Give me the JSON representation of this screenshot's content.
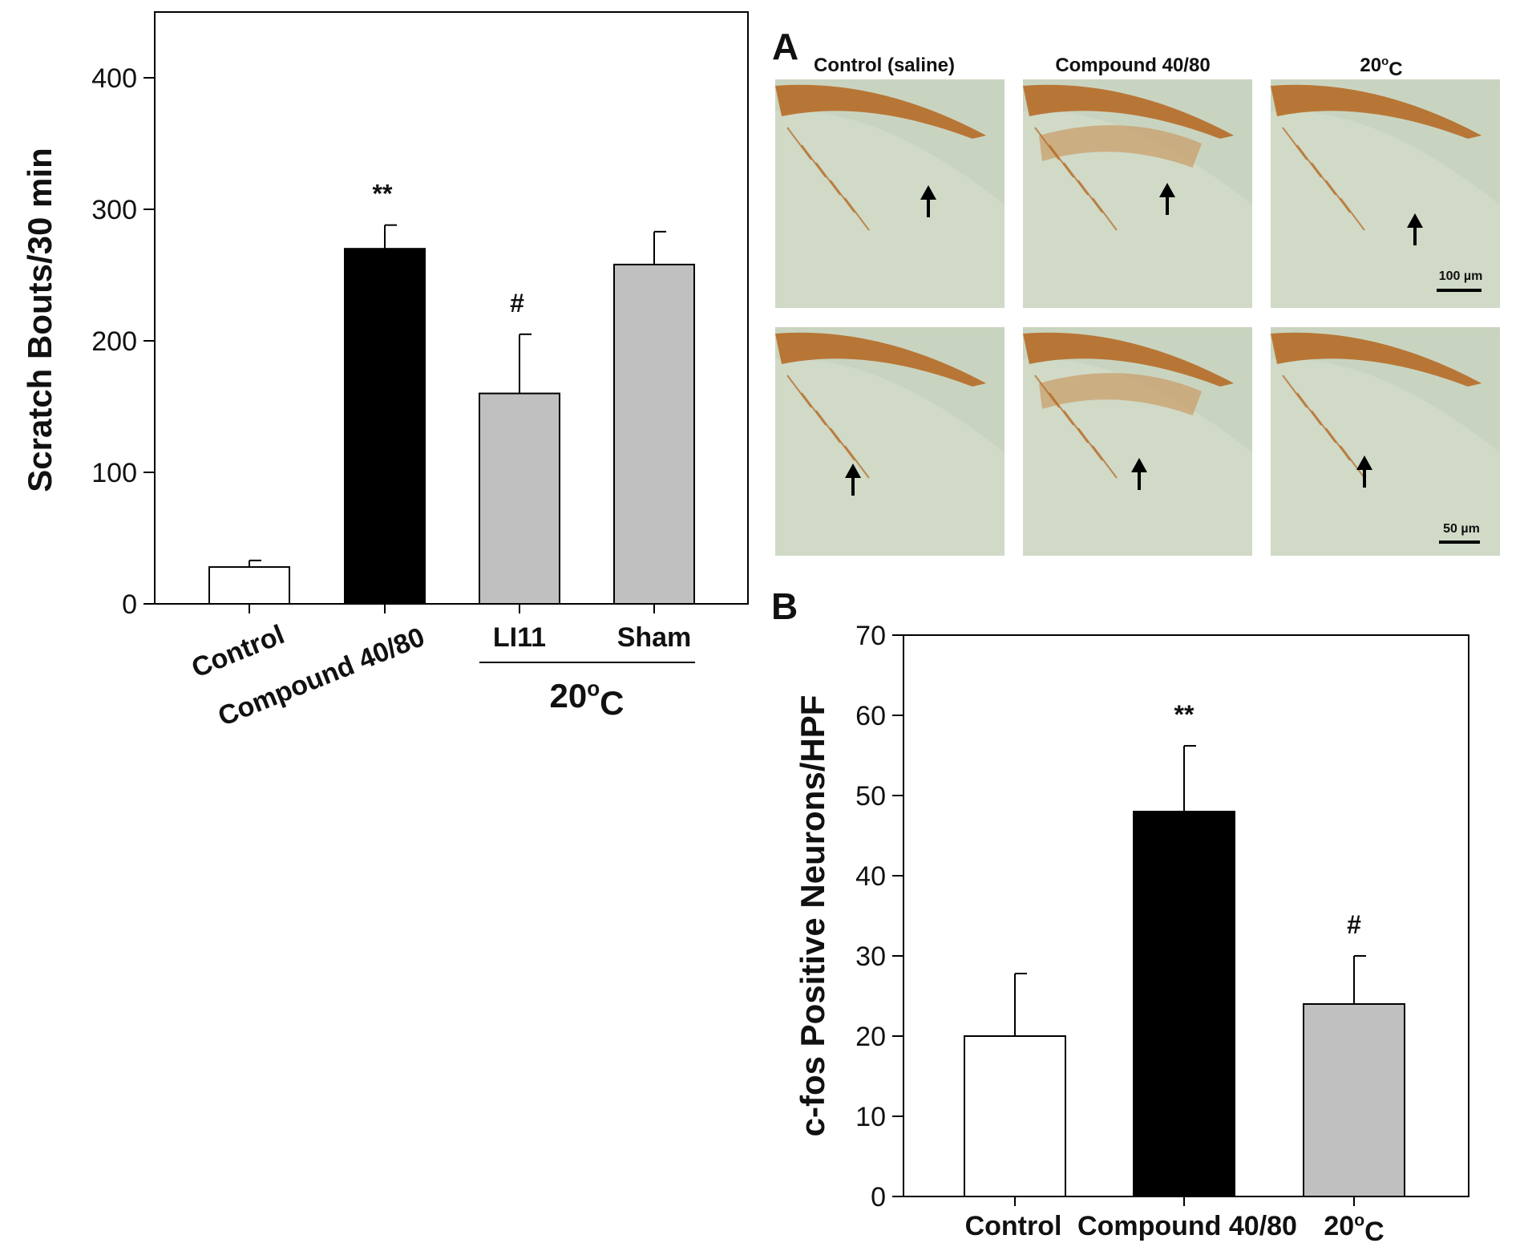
{
  "chart_data": [
    {
      "type": "bar",
      "title": "",
      "xlabel": "",
      "ylabel": "Scratch Bouts/30 min",
      "ylim": [
        0,
        450
      ],
      "yticks": [
        0,
        100,
        200,
        300,
        400
      ],
      "categories": [
        "Control",
        "Compound 40/80",
        "LI11",
        "Sham"
      ],
      "group_label": "20°C",
      "grouped_categories": [
        "LI11",
        "Sham"
      ],
      "values": [
        28,
        270,
        160,
        258
      ],
      "errors": [
        5,
        18,
        45,
        25
      ],
      "colors": [
        "#ffffff",
        "#000000",
        "#c0c0c0",
        "#c0c0c0"
      ],
      "annotations": [
        "",
        "**",
        "#",
        ""
      ],
      "grid": false
    },
    {
      "type": "bar",
      "panel_label": "B",
      "title": "",
      "xlabel": "",
      "ylabel": "c-fos Positive Neurons/HPF",
      "ylim": [
        0,
        70
      ],
      "yticks": [
        0,
        10,
        20,
        30,
        40,
        50,
        60,
        70
      ],
      "categories": [
        "Control",
        "Compound 40/80",
        "20°C"
      ],
      "values": [
        20,
        48,
        24
      ],
      "errors": [
        7.8,
        8.2,
        6
      ],
      "colors": [
        "#ffffff",
        "#000000",
        "#c0c0c0"
      ],
      "annotations": [
        "",
        "**",
        "#"
      ],
      "grid": false
    }
  ],
  "micrographs": {
    "panel_label": "A",
    "columns": [
      "Control (saline)",
      "Compound 40/80",
      "20°C"
    ],
    "scale_bars": [
      "100 µm",
      "50 µm"
    ],
    "stain_color": "#b5651d",
    "tissue_color": "#c9d4c0",
    "icons": [
      "arrow-up-icon"
    ]
  }
}
